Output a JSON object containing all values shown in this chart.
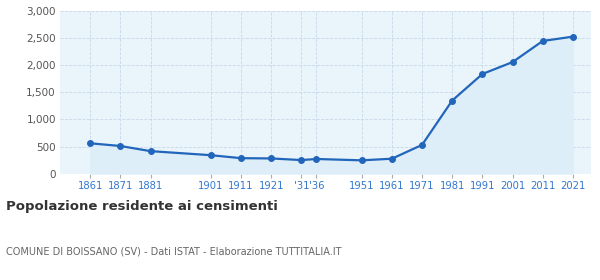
{
  "years": [
    1861,
    1871,
    1881,
    1901,
    1911,
    1921,
    1931,
    1936,
    1951,
    1961,
    1971,
    1981,
    1991,
    2001,
    2011,
    2021
  ],
  "population": [
    560,
    510,
    415,
    340,
    285,
    280,
    250,
    270,
    245,
    275,
    530,
    1350,
    1840,
    2060,
    2450,
    2530
  ],
  "xtick_positions": [
    1861,
    1871,
    1881,
    1901,
    1911,
    1921,
    1931,
    1936,
    1951,
    1961,
    1971,
    1981,
    1991,
    2001,
    2011,
    2021
  ],
  "xtick_labels": [
    "1861",
    "1871",
    "1881",
    "1901",
    "1911",
    "1921",
    "'31",
    "'36",
    "1951",
    "1961",
    "1971",
    "1981",
    "1991",
    "2001",
    "2011",
    "2021"
  ],
  "line_color": "#2266bb",
  "fill_color": "#deeef9",
  "marker_color": "#2266bb",
  "background_color": "#eaf4fb",
  "grid_color": "#c8d8e8",
  "title": "Popolazione residente ai censimenti",
  "subtitle": "COMUNE DI BOISSANO (SV) - Dati ISTAT - Elaborazione TUTTITALIA.IT",
  "ylim": [
    0,
    3000
  ],
  "yticks": [
    0,
    500,
    1000,
    1500,
    2000,
    2500,
    3000
  ],
  "xlim_left": 1851,
  "xlim_right": 2027
}
